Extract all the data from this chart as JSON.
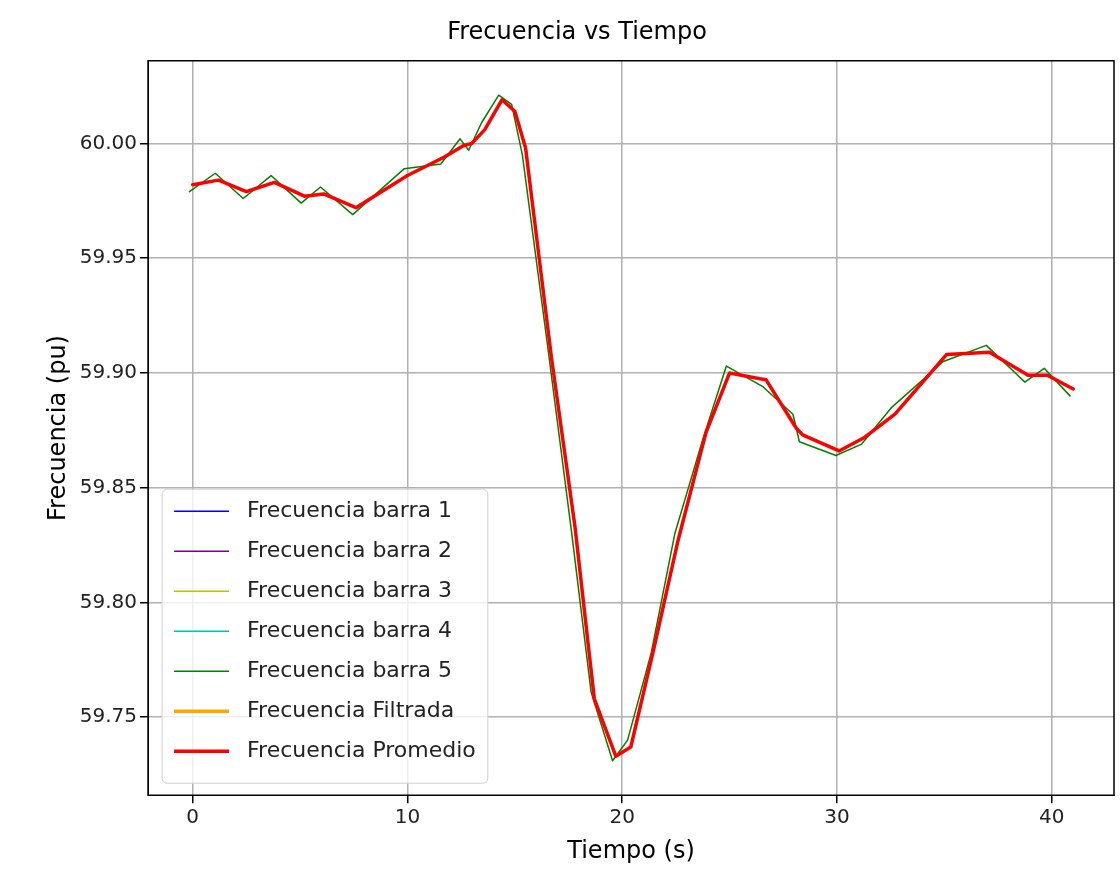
{
  "chart_data": {
    "type": "line",
    "title": "Frecuencia vs Tiempo",
    "xlabel": "Tiempo (s)",
    "ylabel": "Frecuencia (pu)",
    "x": [
      0,
      1.2,
      2.5,
      3.8,
      5.2,
      6.1,
      7.6,
      10,
      11.7,
      12.6,
      13,
      13.6,
      14.4,
      15,
      15.5,
      16.7,
      17.8,
      18.7,
      19.7,
      20.4,
      21.5,
      22.6,
      23.9,
      25,
      26.7,
      28.1,
      28.4,
      30.1,
      31.3,
      32.7,
      35.1,
      37.1,
      38.9,
      39.8,
      41
    ],
    "series": [
      {
        "name": "Frecuencia barra 1",
        "color": "#0000ff",
        "values": [
          null,
          null,
          null,
          null,
          null,
          null,
          null,
          null,
          null,
          null,
          null,
          null,
          null,
          null,
          null,
          null,
          null,
          null,
          null,
          null,
          null,
          null,
          null,
          null,
          null,
          null,
          null,
          null,
          null,
          null,
          null,
          null,
          null,
          null,
          null
        ]
      },
      {
        "name": "Frecuencia barra 2",
        "color": "#800080",
        "values": [
          null,
          null,
          null,
          null,
          null,
          null,
          null,
          null,
          null,
          null,
          null,
          null,
          null,
          null,
          null,
          null,
          null,
          null,
          null,
          null,
          null,
          null,
          null,
          null,
          null,
          null,
          null,
          null,
          null,
          null,
          null,
          null,
          null,
          null,
          null
        ]
      },
      {
        "name": "Frecuencia barra 3",
        "color": "#bfbf00",
        "values": [
          null,
          null,
          null,
          null,
          null,
          null,
          null,
          null,
          null,
          null,
          null,
          null,
          null,
          null,
          null,
          null,
          null,
          null,
          null,
          null,
          null,
          null,
          null,
          null,
          null,
          null,
          null,
          null,
          null,
          null,
          null,
          null,
          null,
          null,
          null
        ]
      },
      {
        "name": "Frecuencia barra 4",
        "color": "#00bfbf",
        "values": [
          null,
          null,
          null,
          null,
          null,
          null,
          null,
          null,
          null,
          null,
          null,
          null,
          null,
          null,
          null,
          null,
          null,
          null,
          null,
          null,
          null,
          null,
          null,
          null,
          null,
          null,
          null,
          null,
          null,
          null,
          null,
          null,
          null,
          null,
          null
        ]
      },
      {
        "name": "Frecuencia barra 5",
        "color": "#008000",
        "x": [
          -0.15,
          1.05,
          2.35,
          3.65,
          5.05,
          5.95,
          7.45,
          9.85,
          11.55,
          12.45,
          12.85,
          13.45,
          14.25,
          14.85,
          15.35,
          16.55,
          17.65,
          18.55,
          19.55,
          20.25,
          21.35,
          22.45,
          23.75,
          24.85,
          26.55,
          27.95,
          28.25,
          29.95,
          31.15,
          32.55,
          34.95,
          36.95,
          38.75,
          39.65,
          40.85
        ],
        "values": [
          59.979,
          59.987,
          59.976,
          59.986,
          59.974,
          59.981,
          59.969,
          59.989,
          59.991,
          60.002,
          59.997,
          60.009,
          60.021,
          60.017,
          59.995,
          59.91,
          59.83,
          59.761,
          59.731,
          59.74,
          59.778,
          59.83,
          59.871,
          59.903,
          59.894,
          59.882,
          59.87,
          59.864,
          59.869,
          59.885,
          59.905,
          59.912,
          59.896,
          59.902,
          59.89
        ]
      },
      {
        "name": "Frecuencia Filtrada",
        "color": "#ffa500",
        "values": [
          null,
          null,
          null,
          null,
          null,
          null,
          null,
          null,
          null,
          null,
          null,
          null,
          null,
          null,
          null,
          null,
          null,
          null,
          null,
          null,
          null,
          null,
          null,
          null,
          null,
          null,
          null,
          null,
          null,
          null,
          null,
          null,
          null,
          null,
          null
        ]
      },
      {
        "name": "Frecuencia Promedio",
        "color": "#ff0000",
        "values": [
          59.982,
          59.984,
          59.979,
          59.983,
          59.977,
          59.978,
          59.972,
          59.986,
          59.994,
          59.999,
          60.0,
          60.006,
          60.019,
          60.014,
          59.998,
          59.907,
          59.833,
          59.758,
          59.733,
          59.737,
          59.781,
          59.827,
          59.874,
          59.9,
          59.897,
          59.876,
          59.873,
          59.866,
          59.872,
          59.882,
          59.908,
          59.909,
          59.899,
          59.899,
          59.893
        ]
      }
    ],
    "xlim": [
      -2.08,
      42.9
    ],
    "xticks": [
      0,
      10,
      20,
      30,
      40
    ],
    "ylim": [
      59.716,
      60.036
    ],
    "yticks": [
      {
        "value": 59.75,
        "label": "59.75"
      },
      {
        "value": 59.8,
        "label": "59.80"
      },
      {
        "value": 59.85,
        "label": "59.85"
      },
      {
        "value": 59.9,
        "label": "59.90"
      },
      {
        "value": 59.95,
        "label": "59.95"
      },
      {
        "value": 60,
        "label": "60.00"
      }
    ],
    "grid": true,
    "legend": "bottom left",
    "marker": "none",
    "line_style": "solid"
  }
}
